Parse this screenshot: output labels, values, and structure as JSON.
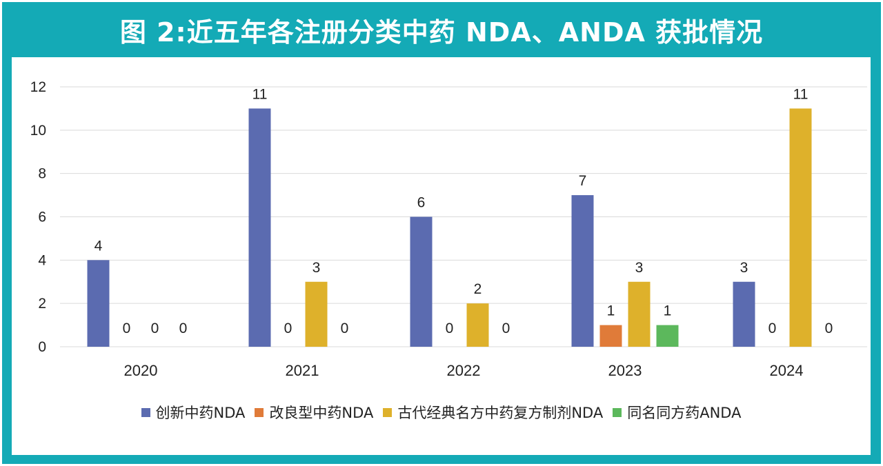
{
  "header": {
    "title": "图 2:近五年各注册分类中药 NDA、ANDA 获批情况"
  },
  "chart_data": {
    "type": "bar",
    "title": "图 2:近五年各注册分类中药 NDA、ANDA 获批情况",
    "xlabel": "",
    "ylabel": "",
    "ylim": [
      0,
      12
    ],
    "yticks": [
      0,
      2,
      4,
      6,
      8,
      10,
      12
    ],
    "grid": true,
    "legend_position": "bottom",
    "categories": [
      "2020",
      "2021",
      "2022",
      "2023",
      "2024"
    ],
    "series": [
      {
        "name": "创新中药NDA",
        "color": "#5b6bb0",
        "values": [
          4,
          11,
          6,
          7,
          3
        ]
      },
      {
        "name": "改良型中药NDA",
        "color": "#e07b39",
        "values": [
          0,
          0,
          0,
          1,
          0
        ]
      },
      {
        "name": "古代经典名方中药复方制剂NDA",
        "color": "#deb12b",
        "values": [
          0,
          3,
          2,
          3,
          11
        ]
      },
      {
        "name": "同名同方药ANDA",
        "color": "#5cb85c",
        "values": [
          0,
          0,
          0,
          1,
          0
        ]
      }
    ]
  }
}
